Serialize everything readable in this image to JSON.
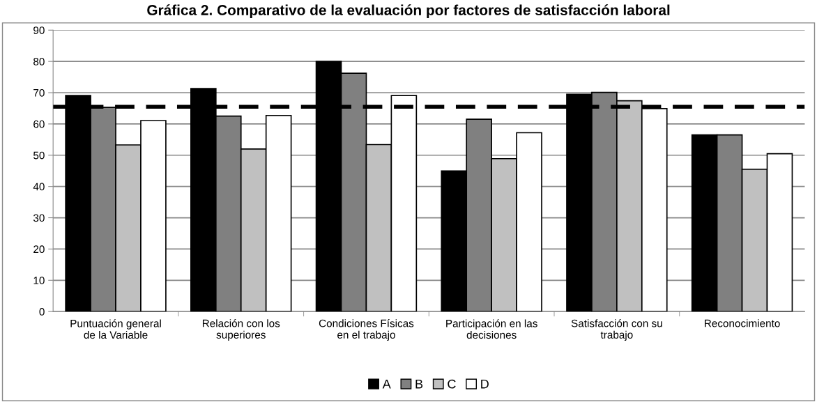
{
  "chart_data": {
    "type": "bar",
    "title": "Gráfica 2. Comparativo de la evaluación por factores de satisfacción laboral",
    "categories": [
      "Puntuación general\nde la Variable",
      "Relación con los\nsuperiores",
      "Condiciones Físicas\nen el trabajo",
      "Participación en las\ndecisiones",
      "Satisfacción con su\ntrabajo",
      "Reconocimiento"
    ],
    "series": [
      {
        "name": "A",
        "color": "#000000",
        "values": [
          69.1,
          71.3,
          80.0,
          45.0,
          69.5,
          56.5
        ]
      },
      {
        "name": "B",
        "color": "#808080",
        "values": [
          65.3,
          62.5,
          76.2,
          61.5,
          70.1,
          56.5
        ]
      },
      {
        "name": "C",
        "color": "#c0c0c0",
        "values": [
          53.3,
          52.0,
          53.4,
          48.9,
          67.4,
          45.5
        ]
      },
      {
        "name": "D",
        "color": "#ffffff",
        "values": [
          61.1,
          62.7,
          69.1,
          57.2,
          64.9,
          50.5
        ]
      }
    ],
    "ylim": [
      0,
      90
    ],
    "yticks": [
      0,
      10,
      20,
      30,
      40,
      50,
      60,
      70,
      80,
      90
    ],
    "grid": "y",
    "legend": "bottom",
    "ref_lines": [
      {
        "axis": "y",
        "value": 65.5,
        "color": "#000000",
        "line_style": "dashed"
      }
    ]
  }
}
